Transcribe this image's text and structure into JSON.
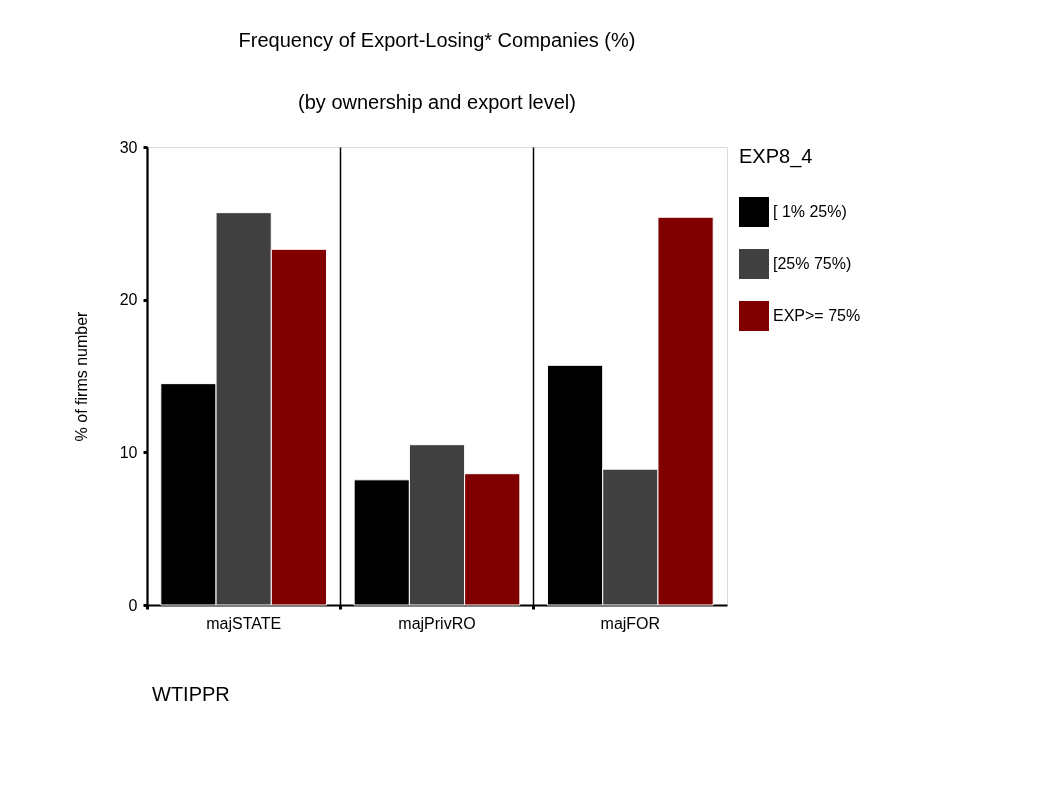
{
  "chart_data": {
    "type": "bar",
    "title": "Frequency of Export-Losing* Companies (%)",
    "subtitle": "(by ownership and export level)",
    "ylabel": "% of firms number",
    "legend_title": "EXP8_4",
    "categories": [
      "majSTATE",
      "majPrivRO",
      "majFOR"
    ],
    "series": [
      {
        "name": "[ 1% 25%)",
        "color": "#000000",
        "values": [
          14.5,
          8.2,
          15.7
        ]
      },
      {
        "name": "[25% 75%)",
        "color": "#404040",
        "values": [
          25.7,
          10.5,
          8.9
        ]
      },
      {
        "name": "EXP>=  75%",
        "color": "#800000",
        "values": [
          23.3,
          8.6,
          25.4
        ]
      }
    ],
    "ylim": [
      0,
      30
    ],
    "yticks": [
      0,
      10,
      20,
      30
    ],
    "grid": "x",
    "legend": "right",
    "annotations": [
      "WTIPPR"
    ]
  }
}
